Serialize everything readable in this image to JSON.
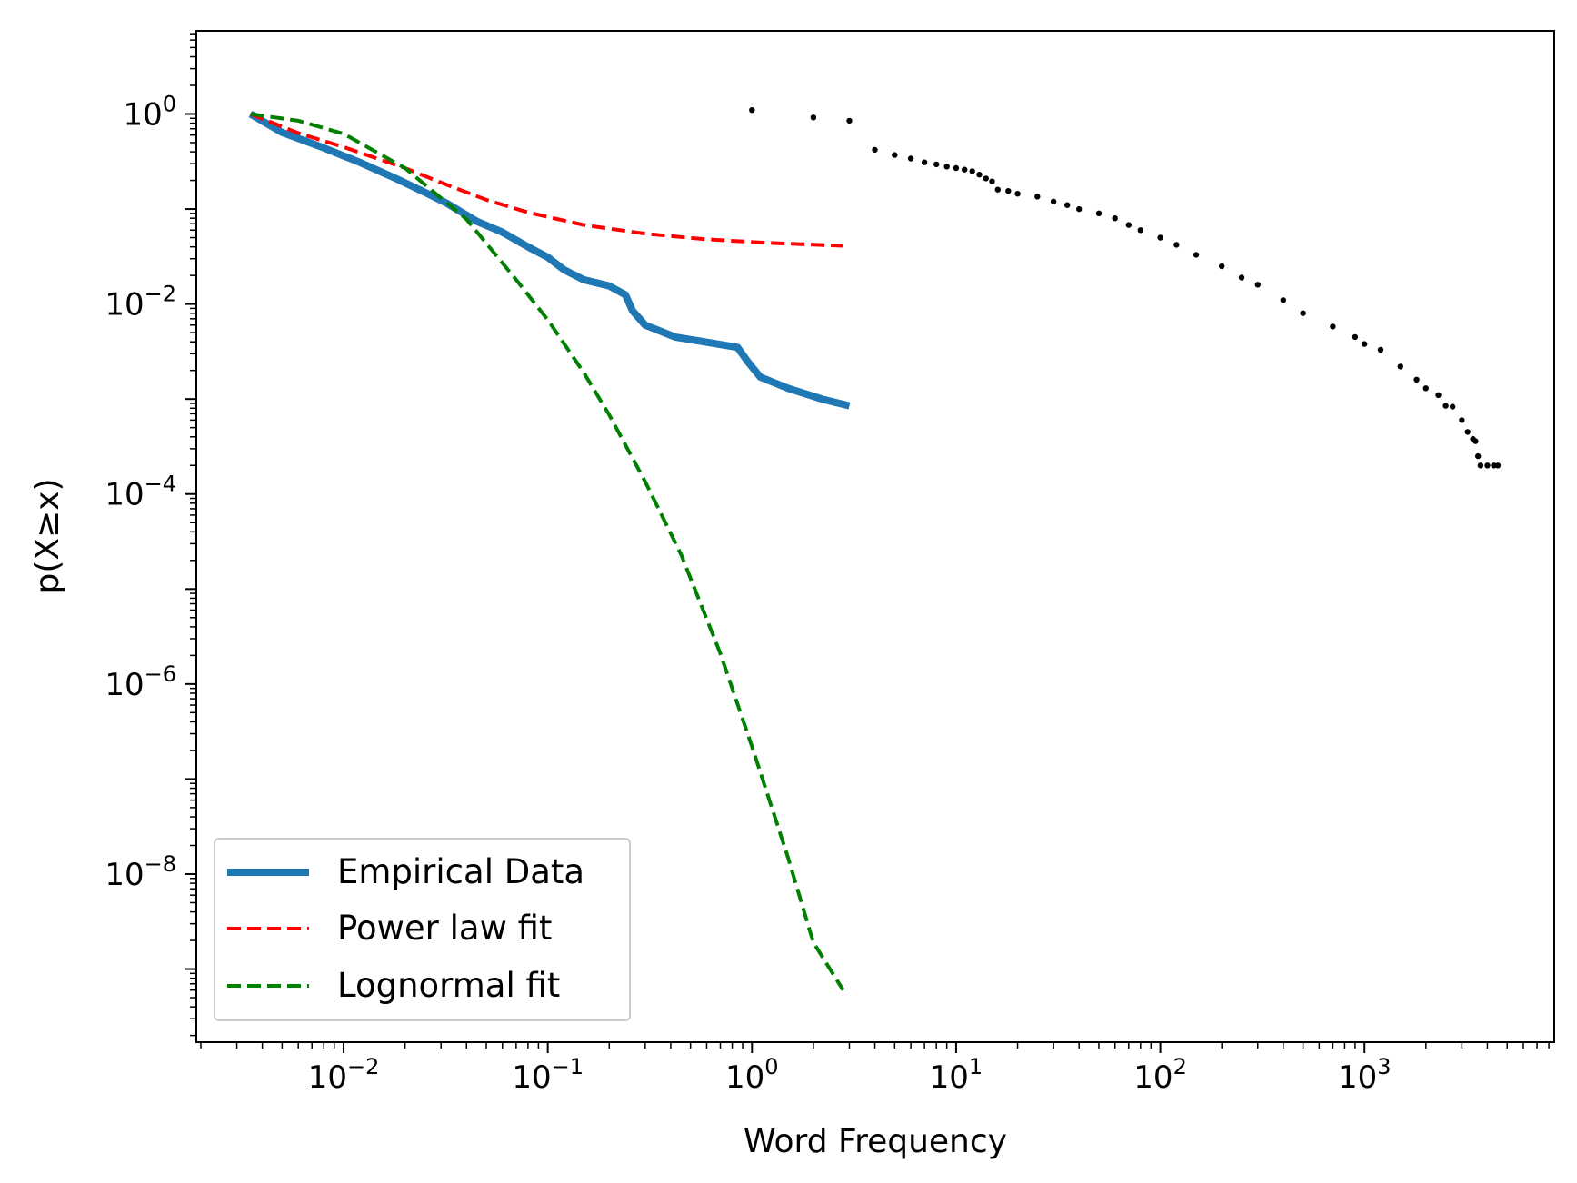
{
  "chart_data": {
    "type": "line",
    "xlabel": "Word Frequency",
    "ylabel": "p(X≥x)",
    "xscale": "log",
    "yscale": "log",
    "xlim": [
      0.0019,
      8500
    ],
    "ylim": [
      1.7e-10,
      7.5
    ],
    "grid": false,
    "legend_position": "lower left",
    "x_ticks": [
      {
        "value": 0.01,
        "base": "10",
        "exp": "−2"
      },
      {
        "value": 0.1,
        "base": "10",
        "exp": "−1"
      },
      {
        "value": 1,
        "base": "10",
        "exp": "0"
      },
      {
        "value": 10,
        "base": "10",
        "exp": "1"
      },
      {
        "value": 100,
        "base": "10",
        "exp": "2"
      },
      {
        "value": 1000,
        "base": "10",
        "exp": "3"
      }
    ],
    "y_ticks": [
      {
        "value": 1,
        "base": "10",
        "exp": "0"
      },
      {
        "value": 0.01,
        "base": "10",
        "exp": "−2"
      },
      {
        "value": 0.0001,
        "base": "10",
        "exp": "−4"
      },
      {
        "value": 1e-06,
        "base": "10",
        "exp": "−6"
      },
      {
        "value": 1e-08,
        "base": "10",
        "exp": "−8"
      }
    ],
    "series": [
      {
        "name": "Empirical Data",
        "style": "solid",
        "color": "#1f77b4",
        "x": [
          0.0035,
          0.005,
          0.008,
          0.012,
          0.018,
          0.025,
          0.032,
          0.045,
          0.06,
          0.08,
          0.1,
          0.12,
          0.15,
          0.2,
          0.24,
          0.26,
          0.3,
          0.42,
          0.85,
          0.95,
          1.1,
          1.5,
          2.2,
          3.0
        ],
        "y": [
          1.0,
          0.64,
          0.44,
          0.31,
          0.21,
          0.15,
          0.115,
          0.074,
          0.057,
          0.04,
          0.031,
          0.023,
          0.018,
          0.0155,
          0.0125,
          0.0085,
          0.006,
          0.0045,
          0.0035,
          0.0025,
          0.0017,
          0.0013,
          0.001,
          0.00085
        ]
      },
      {
        "name": "Power law fit",
        "style": "dashed",
        "color": "#ff0000",
        "x": [
          0.0035,
          0.006,
          0.01,
          0.02,
          0.03,
          0.05,
          0.08,
          0.15,
          0.3,
          0.6,
          1.2,
          2.8
        ],
        "y": [
          1.0,
          0.63,
          0.45,
          0.27,
          0.19,
          0.125,
          0.092,
          0.068,
          0.055,
          0.048,
          0.044,
          0.041
        ]
      },
      {
        "name": "Lognormal fit",
        "style": "dashed",
        "color": "#008000",
        "x": [
          0.0035,
          0.006,
          0.01,
          0.02,
          0.04,
          0.07,
          0.1,
          0.15,
          0.2,
          0.3,
          0.45,
          0.7,
          1.0,
          1.5,
          2.0,
          2.8
        ],
        "y": [
          1.0,
          0.85,
          0.62,
          0.27,
          0.078,
          0.018,
          0.0068,
          0.0019,
          0.00068,
          0.000135,
          2.3e-05,
          2.1e-06,
          2.2e-07,
          1.5e-08,
          1.9e-09,
          6e-10
        ]
      },
      {
        "name": "",
        "style": "markers",
        "color": "#000000",
        "x": [
          1.0,
          2.0,
          3.0,
          4.0,
          5.0,
          6.0,
          7.0,
          8.0,
          9.0,
          10,
          11,
          12,
          13,
          14,
          15,
          16,
          18,
          20,
          25,
          30,
          35,
          40,
          50,
          60,
          70,
          80,
          100,
          120,
          150,
          200,
          250,
          300,
          400,
          500,
          700,
          900,
          1000,
          1200,
          1500,
          1800,
          2000,
          2300,
          2500,
          2700,
          3000,
          3200,
          3400,
          3500,
          3600,
          3700,
          4000,
          4300,
          4500
        ],
        "y": [
          1.1,
          0.92,
          0.85,
          0.42,
          0.37,
          0.34,
          0.31,
          0.295,
          0.28,
          0.27,
          0.26,
          0.25,
          0.23,
          0.21,
          0.195,
          0.16,
          0.155,
          0.145,
          0.135,
          0.12,
          0.11,
          0.1,
          0.09,
          0.08,
          0.068,
          0.06,
          0.05,
          0.042,
          0.033,
          0.025,
          0.019,
          0.016,
          0.011,
          0.008,
          0.0058,
          0.0045,
          0.0038,
          0.0033,
          0.0022,
          0.0016,
          0.0013,
          0.0011,
          0.00085,
          0.00083,
          0.0006,
          0.00045,
          0.00038,
          0.00036,
          0.00025,
          0.0002,
          0.0002,
          0.0002,
          0.0002
        ]
      }
    ]
  }
}
